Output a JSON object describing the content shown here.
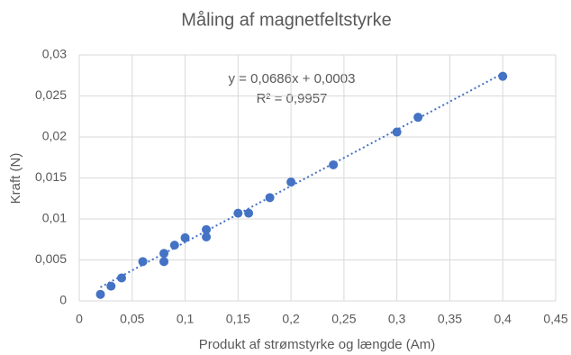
{
  "chart_data": {
    "type": "scatter",
    "title": "Måling af magnetfeltstyrke",
    "x_label": "Produkt af strømstyrke og længde (Am)",
    "y_label": "Kraft (N)",
    "x": [
      0.02,
      0.03,
      0.04,
      0.06,
      0.08,
      0.08,
      0.09,
      0.1,
      0.12,
      0.12,
      0.15,
      0.16,
      0.18,
      0.2,
      0.24,
      0.3,
      0.32,
      0.4
    ],
    "values": [
      0.0008,
      0.0018,
      0.0028,
      0.0048,
      0.0058,
      0.0048,
      0.0068,
      0.0077,
      0.0087,
      0.0078,
      0.0107,
      0.0107,
      0.0126,
      0.0145,
      0.0166,
      0.0206,
      0.0224,
      0.0274
    ],
    "color": "#4472c4",
    "xlim": [
      0,
      0.45
    ],
    "ylim": [
      0,
      0.03
    ],
    "xticks": [
      0,
      {
        "value": 0.05,
        "label": "0,05"
      },
      {
        "value": 0.1,
        "label": "0,1"
      },
      {
        "value": 0.15,
        "label": "0,15"
      },
      {
        "value": 0.2,
        "label": "0,2"
      },
      {
        "value": 0.25,
        "label": "0,25"
      },
      {
        "value": 0.3,
        "label": "0,3"
      },
      {
        "value": 0.35,
        "label": "0,35"
      },
      {
        "value": 0.4,
        "label": "0,4"
      },
      {
        "value": 0.45,
        "label": "0,45"
      }
    ],
    "yticks": [
      0,
      {
        "value": 0.005,
        "label": "0,005"
      },
      {
        "value": 0.01,
        "label": "0,01"
      },
      {
        "value": 0.015,
        "label": "0,015"
      },
      {
        "value": 0.02,
        "label": "0,02"
      },
      {
        "value": 0.025,
        "label": "0,025"
      },
      {
        "value": 0.03,
        "label": "0,03"
      }
    ],
    "grid": true,
    "trendline": {
      "equation": "y = 0,0686x + 0,0003",
      "r2_label": "R² = 0,9957",
      "slope": 0.0686,
      "intercept": 0.0003,
      "color": "#4472c4"
    }
  }
}
